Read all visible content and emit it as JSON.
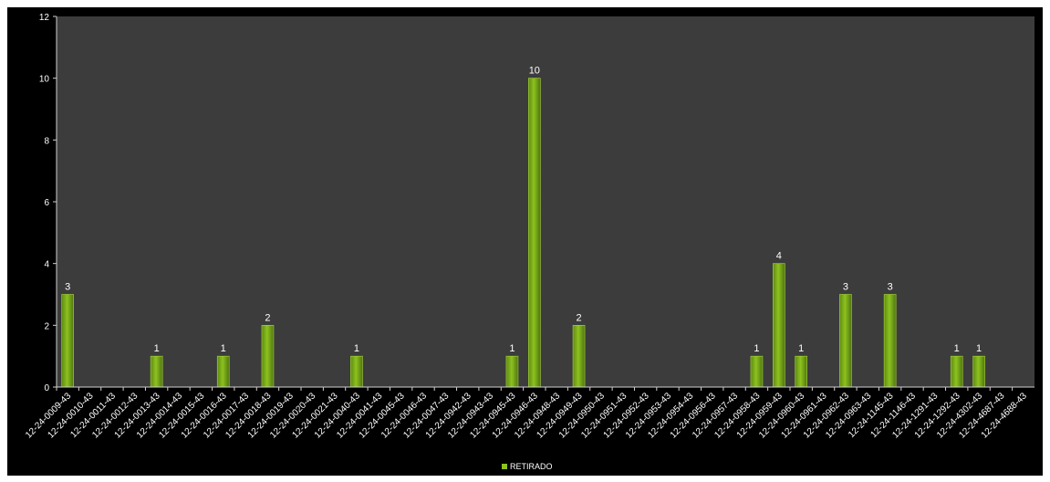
{
  "chart_data": {
    "type": "bar",
    "title": "",
    "xlabel": "",
    "ylabel": "",
    "ylim": [
      0,
      12
    ],
    "yticks": [
      0,
      2,
      4,
      6,
      8,
      10,
      12
    ],
    "grid": false,
    "legend_position": "bottom",
    "categories": [
      "12-24-0009-43",
      "12-24-0010-43",
      "12-24-0011-43",
      "12-24-0012-43",
      "12-24-0013-43",
      "12-24-0014-43",
      "12-24-0015-43",
      "12-24-0016-43",
      "12-24-0017-43",
      "12-24-0018-43",
      "12-24-0019-43",
      "12-24-0020-43",
      "12-24-0021-43",
      "12-24-0040-43",
      "12-24-0041-43",
      "12-24-0045-43",
      "12-24-0046-43",
      "12-24-0047-43",
      "12-24-0942-43",
      "12-24-0943-43",
      "12-24-0945-43",
      "12-24-0946-43",
      "12-24-0948-43",
      "12-24-0949-43",
      "12-24-0950-43",
      "12-24-0951-43",
      "12-24-0952-43",
      "12-24-0953-43",
      "12-24-0954-43",
      "12-24-0956-43",
      "12-24-0957-43",
      "12-24-0958-43",
      "12-24-0959-43",
      "12-24-0960-43",
      "12-24-0961-43",
      "12-24-0962-43",
      "12-24-0963-43",
      "12-24-1145-43",
      "12-24-1146-43",
      "12-24-1291-43",
      "12-24-1292-43",
      "12-24-4302-43",
      "12-24-4687-43",
      "12-24-4688-43"
    ],
    "series": [
      {
        "name": "RETIRADO",
        "color": "#8dc21f",
        "values": [
          3,
          0,
          0,
          0,
          1,
          0,
          0,
          1,
          0,
          2,
          0,
          0,
          0,
          1,
          0,
          0,
          0,
          0,
          0,
          0,
          1,
          10,
          0,
          2,
          0,
          0,
          0,
          0,
          0,
          0,
          0,
          1,
          4,
          1,
          0,
          3,
          0,
          3,
          0,
          0,
          1,
          1,
          0,
          0
        ]
      }
    ],
    "data_labels_shown_for_nonzero": true
  },
  "colors": {
    "plot_background": "#3c3c3c",
    "frame_background": "#000000",
    "text": "#ffffff",
    "bar": "#8dc21f"
  }
}
